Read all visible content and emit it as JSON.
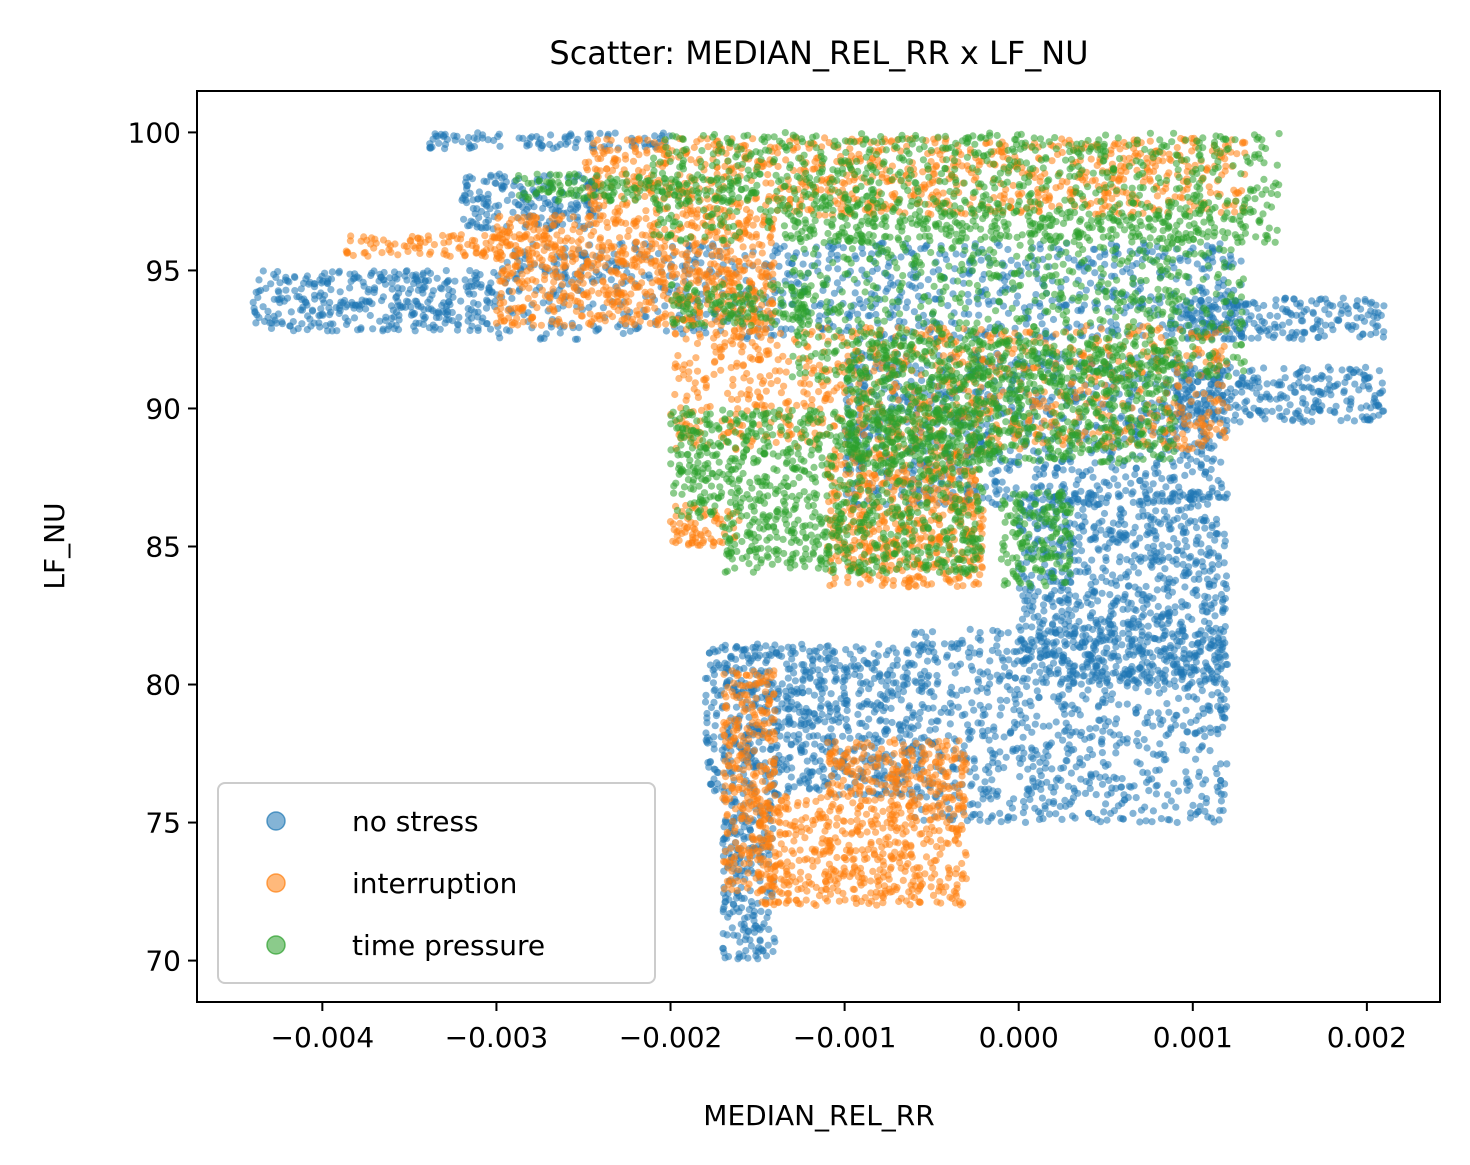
{
  "chart_data": {
    "type": "scatter",
    "title": "Scatter: MEDIAN_REL_RR x LF_NU",
    "xlabel": "MEDIAN_REL_RR",
    "ylabel": "LF_NU",
    "xlim": [
      -0.00472,
      0.00242
    ],
    "ylim": [
      68.5,
      101.5
    ],
    "xticks": [
      -0.004,
      -0.003,
      -0.002,
      -0.001,
      0.0,
      0.001,
      0.002
    ],
    "xtick_labels": [
      "−0.004",
      "−0.003",
      "−0.002",
      "−0.001",
      "0.000",
      "0.001",
      "0.002"
    ],
    "yticks": [
      70,
      75,
      80,
      85,
      90,
      95,
      100
    ],
    "ytick_labels": [
      "70",
      "75",
      "80",
      "85",
      "90",
      "95",
      "100"
    ],
    "grid": false,
    "legend_position": "lower-left",
    "series": [
      {
        "name": "no stress",
        "color": "#1f77b4",
        "regions": [
          {
            "x": [
              -0.0044,
              -0.003
            ],
            "y": [
              92.8,
              95.0
            ]
          },
          {
            "x": [
              -0.0034,
              -0.002
            ],
            "y": [
              99.4,
              100.0
            ]
          },
          {
            "x": [
              -0.0032,
              -0.0024
            ],
            "y": [
              96.5,
              98.5
            ]
          },
          {
            "x": [
              -0.003,
              0.0013
            ],
            "y": [
              92.5,
              96.0
            ]
          },
          {
            "x": [
              0.0009,
              0.0021
            ],
            "y": [
              92.5,
              94.0
            ]
          },
          {
            "x": [
              0.0009,
              0.0021
            ],
            "y": [
              89.5,
              91.5
            ]
          },
          {
            "x": [
              -0.001,
              0.0012
            ],
            "y": [
              86.5,
              92.0
            ]
          },
          {
            "x": [
              0.0,
              0.0012
            ],
            "y": [
              80.0,
              87.0
            ]
          },
          {
            "x": [
              -0.0006,
              0.0012
            ],
            "y": [
              75.0,
              82.0
            ]
          },
          {
            "x": [
              -0.0018,
              -0.0006
            ],
            "y": [
              76.0,
              81.5
            ]
          },
          {
            "x": [
              -0.0017,
              -0.0014
            ],
            "y": [
              70.0,
              76.0
            ]
          }
        ]
      },
      {
        "name": "interruption",
        "color": "#ff7f0e",
        "regions": [
          {
            "x": [
              -0.0039,
              -0.0026
            ],
            "y": [
              95.5,
              96.3
            ]
          },
          {
            "x": [
              -0.003,
              -0.0014
            ],
            "y": [
              93.0,
              97.0
            ]
          },
          {
            "x": [
              -0.0025,
              0.0013
            ],
            "y": [
              97.0,
              99.8
            ]
          },
          {
            "x": [
              -0.002,
              0.0012
            ],
            "y": [
              88.5,
              93.0
            ]
          },
          {
            "x": [
              -0.002,
              -0.0016
            ],
            "y": [
              85.0,
              86.5
            ]
          },
          {
            "x": [
              -0.0011,
              -0.0002
            ],
            "y": [
              83.5,
              88.5
            ]
          },
          {
            "x": [
              -0.0017,
              -0.0014
            ],
            "y": [
              72.5,
              80.5
            ]
          },
          {
            "x": [
              -0.0015,
              -0.0011
            ],
            "y": [
              72.0,
              76.0
            ]
          },
          {
            "x": [
              -0.0011,
              -0.0003
            ],
            "y": [
              72.0,
              78.0
            ]
          }
        ]
      },
      {
        "name": "time pressure",
        "color": "#2ca02c",
        "regions": [
          {
            "x": [
              -0.0029,
              -0.0015
            ],
            "y": [
              97.5,
              98.5
            ]
          },
          {
            "x": [
              -0.0021,
              0.0015
            ],
            "y": [
              96.0,
              100.0
            ]
          },
          {
            "x": [
              -0.002,
              -0.0012
            ],
            "y": [
              93.0,
              94.5
            ]
          },
          {
            "x": [
              -0.0013,
              0.0013
            ],
            "y": [
              91.0,
              97.5
            ]
          },
          {
            "x": [
              -0.001,
              0.0009
            ],
            "y": [
              88.0,
              92.5
            ]
          },
          {
            "x": [
              -0.0017,
              -0.0002
            ],
            "y": [
              84.0,
              90.0
            ]
          },
          {
            "x": [
              -0.002,
              -0.0017
            ],
            "y": [
              86.0,
              90.0
            ]
          },
          {
            "x": [
              -0.0001,
              0.0003
            ],
            "y": [
              83.5,
              87.0
            ]
          }
        ]
      }
    ]
  }
}
